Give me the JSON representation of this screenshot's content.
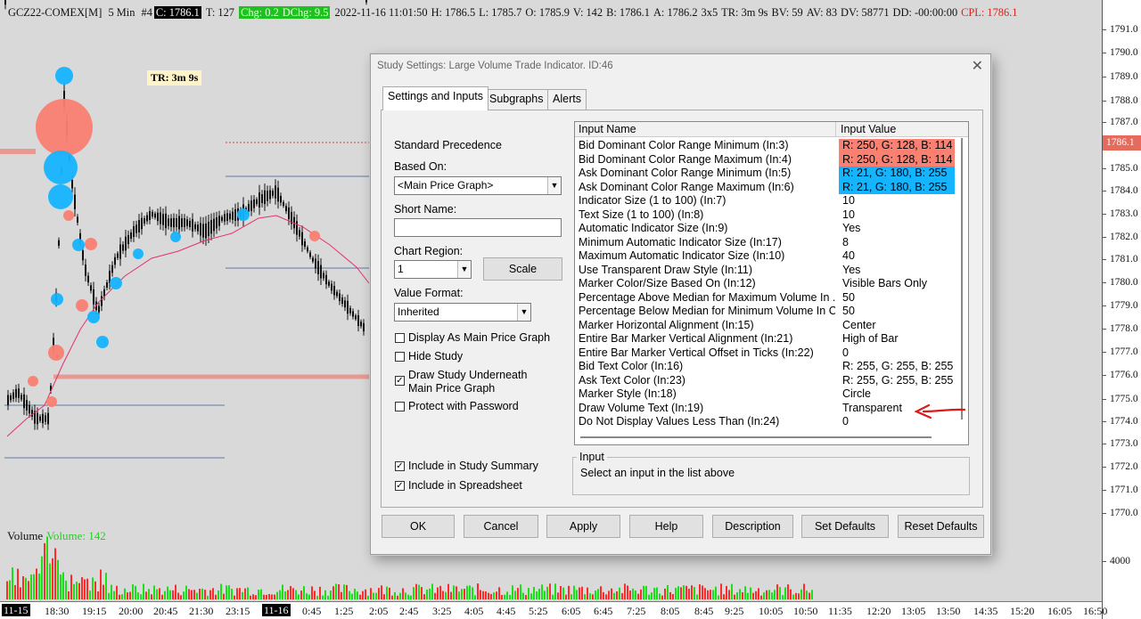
{
  "infoline": {
    "symbol": "GCZ22-COMEX[M]",
    "interval": "5 Min",
    "chart_num": "#4",
    "close": "C: 1786.1",
    "ticks": "T: 127",
    "chg": "Chg: 0.2",
    "dchg": "DChg: 9.5",
    "datetime": "2022-11-16 11:01:50",
    "high": "H: 1786.5",
    "low": "L: 1785.7",
    "open": "O: 1785.9",
    "volume": "V: 142",
    "bid": "B: 1786.1",
    "ask": "A: 1786.2",
    "bar_spec": "3x5",
    "time_remaining": "TR: 3m 9s",
    "bid_volume": "BV: 59",
    "ask_volume": "AV: 83",
    "daily_volume": "DV: 58771",
    "dd": "DD: -00:00:00",
    "cpl": "CPL: 1786.1"
  },
  "tr_label": "TR: 3m 9s",
  "price_axis": {
    "ticks": [
      "1791.0",
      "1790.0",
      "1789.0",
      "1788.0",
      "1787.0",
      "1786.0",
      "1785.0",
      "1784.0",
      "1783.0",
      "1782.0",
      "1781.0",
      "1780.0",
      "1779.0",
      "1778.0",
      "1777.0",
      "1776.0",
      "1775.0",
      "1774.0",
      "1773.0",
      "1772.0",
      "1771.0",
      "1770.0",
      "4000"
    ],
    "current_price": "1786.1"
  },
  "volume_label": {
    "title": "Volume",
    "value": "Volume: 142"
  },
  "time_axis": {
    "ticks": [
      "11-15",
      "18:30",
      "19:15",
      "20:00",
      "20:45",
      "21:30",
      "23:15",
      "11-16",
      "0:45",
      "1:25",
      "2:05",
      "2:45",
      "3:25",
      "4:05",
      "4:45",
      "5:25",
      "6:05",
      "6:45",
      "7:25",
      "8:05",
      "8:45",
      "9:25",
      "10:05",
      "10:50",
      "11:35",
      "12:20",
      "13:05",
      "13:50",
      "14:35",
      "15:20",
      "16:05",
      "16:50"
    ]
  },
  "colors": {
    "bid_marker": "#fa8072",
    "ask_marker": "#15b4ff",
    "ma_line": "#e8306a",
    "volume_up": "#19e019",
    "volume_down": "#ff2a2a",
    "arrow": "#dd1a1a"
  },
  "dialog": {
    "title": "Study Settings: Large Volume Trade Indicator. ID:46",
    "close_icon": "close-icon",
    "tabs": [
      "Settings and Inputs",
      "Subgraphs",
      "Alerts"
    ],
    "standard_precedence": "Standard Precedence",
    "based_on_label": "Based On:",
    "based_on_value": "<Main Price Graph>",
    "short_name_label": "Short Name:",
    "short_name_value": "",
    "chart_region_label": "Chart Region:",
    "chart_region_value": "1",
    "scale_button": "Scale",
    "value_format_label": "Value Format:",
    "value_format_value": "Inherited",
    "checkboxes": [
      {
        "label": "Display As Main Price Graph",
        "checked": false
      },
      {
        "label": "Hide Study",
        "checked": false
      },
      {
        "label": "Draw Study Underneath",
        "label2": "Main Price Graph",
        "checked": true
      },
      {
        "label": "Protect with Password",
        "checked": false
      },
      {
        "label": "Include in Study Summary",
        "checked": true
      },
      {
        "label": "Include in Spreadsheet",
        "checked": true
      }
    ],
    "grid_headers": {
      "name": "Input Name",
      "value": "Input Value"
    },
    "inputs": [
      {
        "name": "Bid Dominant Color Range Minimum  (In:3)",
        "value": "R: 250, G: 128, B: 114",
        "color": "#fa8072"
      },
      {
        "name": "Bid Dominant Color Range Maximum  (In:4)",
        "value": "R: 250, G: 128, B: 114",
        "color": "#fa8072"
      },
      {
        "name": "Ask Dominant Color Range Minimum  (In:5)",
        "value": "R: 21, G: 180, B: 255",
        "color": "#15b4ff"
      },
      {
        "name": "Ask Dominant Color Range Maximum  (In:6)",
        "value": "R: 21, G: 180, B: 255",
        "color": "#15b4ff"
      },
      {
        "name": "Indicator Size (1 to 100)  (In:7)",
        "value": "10"
      },
      {
        "name": "Text Size (1 to 100)  (In:8)",
        "value": "10"
      },
      {
        "name": "Automatic Indicator Size  (In:9)",
        "value": "Yes"
      },
      {
        "name": "Minimum Automatic Indicator Size  (In:17)",
        "value": "8"
      },
      {
        "name": "Maximum Automatic Indicator Size  (In:10)",
        "value": "40"
      },
      {
        "name": "Use Transparent Draw Style  (In:11)",
        "value": "Yes"
      },
      {
        "name": "Marker Color/Size Based On  (In:12)",
        "value": "Visible Bars Only"
      },
      {
        "name": "Percentage Above Median for Maximum Volume In ...",
        "value": "50"
      },
      {
        "name": "Percentage Below Median for Minimum Volume In C...",
        "value": "50"
      },
      {
        "name": "Marker Horizontal Alignment  (In:15)",
        "value": "Center"
      },
      {
        "name": "Entire Bar Marker Vertical Alignment  (In:21)",
        "value": "High of Bar"
      },
      {
        "name": "Entire Bar Marker Vertical Offset in Ticks  (In:22)",
        "value": "0"
      },
      {
        "name": "Bid Text Color  (In:16)",
        "value": "R: 255, G: 255, B: 255"
      },
      {
        "name": "Ask Text Color  (In:23)",
        "value": "R: 255, G: 255, B: 255"
      },
      {
        "name": "Marker Style  (In:18)",
        "value": "Circle"
      },
      {
        "name": "Draw Volume Text  (In:19)",
        "value": "Transparent"
      },
      {
        "name": "Do Not Display Values Less Than  (In:24)",
        "value": "0"
      }
    ],
    "input_group_title": "Input",
    "input_description": "Select an input in the list above",
    "buttons": [
      "OK",
      "Cancel",
      "Apply",
      "Help",
      "Description",
      "Set Defaults",
      "Reset Defaults"
    ]
  }
}
